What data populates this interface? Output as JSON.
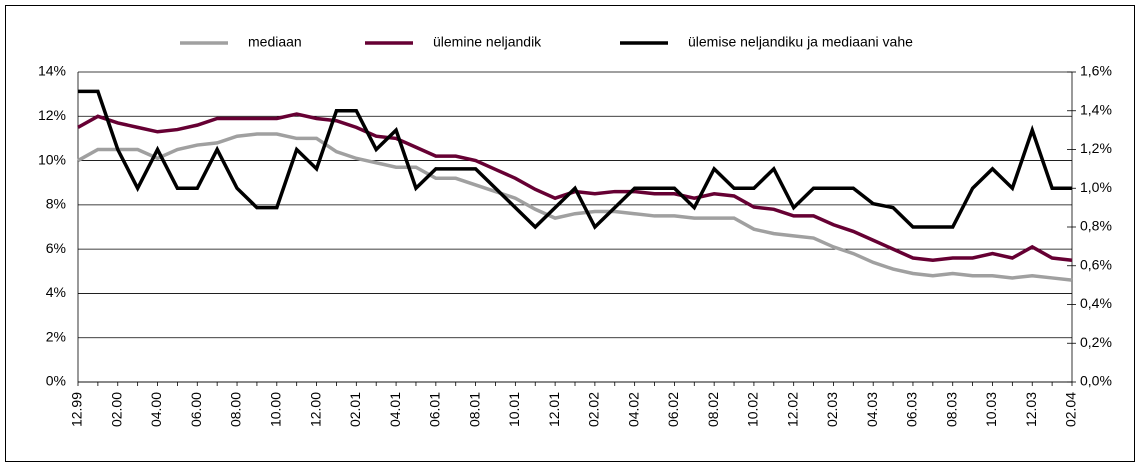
{
  "chart_data": {
    "type": "line",
    "categories": [
      "12.99",
      null,
      "02.00",
      null,
      "04.00",
      null,
      "06.00",
      null,
      "08.00",
      null,
      "10.00",
      null,
      "12.00",
      null,
      "02.01",
      null,
      "04.01",
      null,
      "06.01",
      null,
      "08.01",
      null,
      "10.01",
      null,
      "12.01",
      null,
      "02.02",
      null,
      "04.02",
      null,
      "06.02",
      null,
      "08.02",
      null,
      "10.02",
      null,
      "12.02",
      null,
      "02.03",
      null,
      "04.03",
      null,
      "06.03",
      null,
      "08.03",
      null,
      "10.03",
      null,
      "12.03",
      null,
      "02.04"
    ],
    "series": [
      {
        "name": "mediaan",
        "color": "#a0a0a0",
        "values": [
          10.0,
          10.5,
          10.5,
          10.5,
          10.1,
          10.5,
          10.7,
          10.8,
          11.1,
          11.2,
          11.2,
          11.0,
          11.0,
          10.4,
          10.1,
          9.9,
          9.7,
          9.7,
          9.2,
          9.2,
          8.9,
          8.6,
          8.3,
          7.8,
          7.4,
          7.6,
          7.7,
          7.7,
          7.6,
          7.5,
          7.5,
          7.4,
          7.4,
          7.4,
          6.9,
          6.7,
          6.6,
          6.5,
          6.1,
          5.8,
          5.4,
          5.1,
          4.9,
          4.8,
          4.9,
          4.8,
          4.8,
          4.7,
          4.8,
          4.7,
          4.6
        ]
      },
      {
        "name": "ülemine neljandik",
        "color": "#660033",
        "values": [
          11.5,
          12.0,
          11.7,
          11.5,
          11.3,
          11.4,
          11.6,
          11.9,
          11.9,
          11.9,
          11.9,
          12.1,
          11.9,
          11.8,
          11.5,
          11.1,
          11.0,
          10.6,
          10.2,
          10.2,
          10.0,
          9.6,
          9.2,
          8.7,
          8.3,
          8.6,
          8.5,
          8.6,
          8.6,
          8.5,
          8.5,
          8.3,
          8.5,
          8.4,
          7.9,
          7.8,
          7.5,
          7.5,
          7.1,
          6.8,
          6.4,
          6.0,
          5.6,
          5.5,
          5.6,
          5.6,
          5.8,
          5.6,
          6.1,
          5.6,
          5.5
        ]
      },
      {
        "name": "ülemise neljandiku ja mediaani vahe",
        "color": "#000000",
        "axis": "y2",
        "values": [
          1.5,
          1.5,
          1.2,
          1.0,
          1.2,
          1.0,
          1.0,
          1.2,
          1.0,
          0.9,
          0.9,
          1.2,
          1.1,
          1.4,
          1.4,
          1.2,
          1.3,
          1.0,
          1.1,
          1.1,
          1.1,
          1.0,
          0.9,
          0.8,
          0.9,
          1.0,
          0.8,
          0.9,
          1.0,
          1.0,
          1.0,
          0.9,
          1.1,
          1.0,
          1.0,
          1.1,
          0.9,
          1.0,
          1.0,
          1.0,
          0.92,
          0.9,
          0.8,
          0.8,
          0.8,
          1.0,
          1.1,
          1.0,
          1.3,
          1.0,
          1.0
        ]
      }
    ],
    "ylim": [
      0,
      14
    ],
    "yticks": [
      {
        "value": 0,
        "label": "0%"
      },
      {
        "value": 2,
        "label": "2%"
      },
      {
        "value": 4,
        "label": "4%"
      },
      {
        "value": 6,
        "label": "6%"
      },
      {
        "value": 8,
        "label": "8%"
      },
      {
        "value": 10,
        "label": "10%"
      },
      {
        "value": 12,
        "label": "12%"
      },
      {
        "value": 14,
        "label": "14%"
      }
    ],
    "y2lim": [
      0,
      1.6
    ],
    "y2ticks": [
      {
        "value": 0,
        "label": "0,0%"
      },
      {
        "value": 0.2,
        "label": "0,2%"
      },
      {
        "value": 0.4,
        "label": "0,4%"
      },
      {
        "value": 0.6,
        "label": "0,6%"
      },
      {
        "value": 0.8,
        "label": "0,8%"
      },
      {
        "value": 1.0,
        "label": "1,0%"
      },
      {
        "value": 1.2,
        "label": "1,2%"
      },
      {
        "value": 1.4,
        "label": "1,4%"
      },
      {
        "value": 1.6,
        "label": "1,6%"
      }
    ],
    "grid": true,
    "legend": "top"
  }
}
